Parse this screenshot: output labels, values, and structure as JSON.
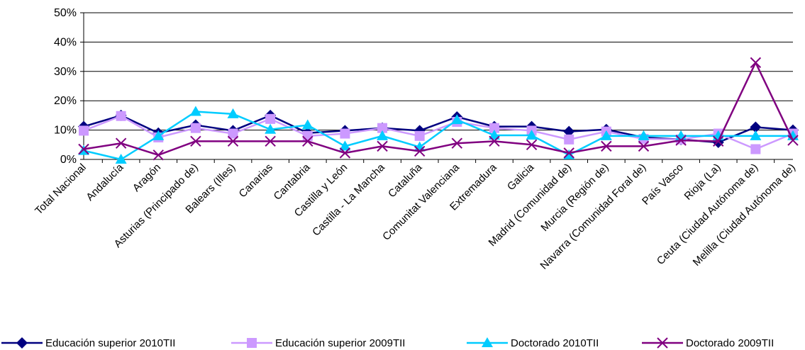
{
  "chart_data": {
    "type": "line",
    "title": "",
    "xlabel": "",
    "ylabel": "",
    "ylim": [
      0,
      50
    ],
    "yticks": [
      "0%",
      "10%",
      "20%",
      "30%",
      "40%",
      "50%"
    ],
    "grid": "horizontal",
    "legend_position": "bottom",
    "categories": [
      "Total Nacional",
      "Andalucía",
      "Aragón",
      "Asturias (Principado de)",
      "Balears (Illes)",
      "Canarias",
      "Cantabria",
      "Castilla y León",
      "Castilla - La Mancha",
      "Cataluña",
      "Comunitat Valenciana",
      "Extremadura",
      "Galicia",
      "Madrid (Comunidad de)",
      "Murcia (Región de)",
      "Navarra (Comunidad Foral de)",
      "País Vasco",
      "Rioja (La)",
      "Ceuta (Ciudad Autónoma de)",
      "Melilla (Ciudad Autónoma de)"
    ],
    "series": [
      {
        "name": "Educación superior 2010TII",
        "color": "#000080",
        "marker": "diamond",
        "values": [
          11.2,
          15.0,
          9.0,
          11.7,
          9.8,
          15.0,
          9.0,
          9.8,
          10.7,
          9.8,
          14.5,
          11.2,
          11.2,
          9.5,
          10.2,
          7.5,
          6.8,
          5.8,
          11.0,
          10.0
        ]
      },
      {
        "name": "Educación superior 2009TII",
        "color": "#CC99FF",
        "marker": "square",
        "values": [
          9.8,
          14.8,
          7.5,
          10.7,
          8.8,
          13.8,
          8.0,
          8.8,
          10.7,
          8.0,
          12.8,
          10.7,
          9.8,
          6.8,
          9.5,
          7.0,
          6.8,
          8.8,
          3.5,
          8.8
        ]
      },
      {
        "name": "Doctorado 2010TII",
        "color": "#00CCFF",
        "marker": "triangle",
        "values": [
          3.0,
          0.0,
          8.0,
          16.3,
          15.5,
          10.2,
          11.7,
          4.5,
          8.0,
          4.2,
          13.5,
          8.2,
          8.2,
          1.5,
          8.0,
          8.0,
          8.0,
          8.0,
          8.0,
          8.0
        ]
      },
      {
        "name": "Doctorado 2009TII",
        "color": "#800080",
        "marker": "x",
        "values": [
          3.5,
          5.5,
          1.5,
          6.2,
          6.2,
          6.2,
          6.2,
          2.2,
          4.5,
          2.8,
          5.5,
          6.2,
          5.0,
          2.2,
          4.5,
          4.5,
          6.5,
          6.2,
          33.0,
          6.5
        ]
      }
    ]
  }
}
